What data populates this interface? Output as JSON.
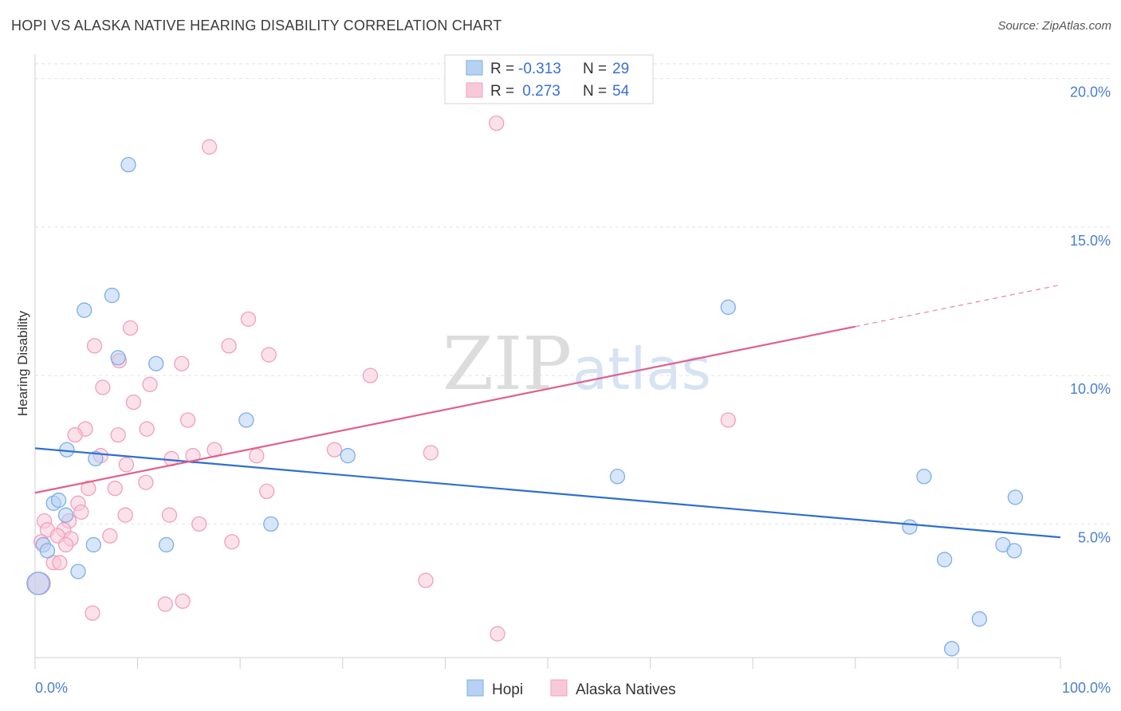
{
  "title": "HOPI VS ALASKA NATIVE HEARING DISABILITY CORRELATION CHART",
  "source": "Source: ZipAtlas.com",
  "watermark": {
    "zip": "ZIP",
    "atlas": "atlas"
  },
  "chart_data": {
    "type": "scatter",
    "ylabel": "Hearing Disability",
    "xlim": [
      0,
      100
    ],
    "ylim": [
      0.5,
      20.5
    ],
    "x_tick_labels": [
      {
        "value": 0,
        "label": "0.0%"
      },
      {
        "value": 100,
        "label": "100.0%"
      }
    ],
    "y_ticks": [
      {
        "value": 5,
        "label": "5.0%"
      },
      {
        "value": 10,
        "label": "10.0%"
      },
      {
        "value": 15,
        "label": "15.0%"
      },
      {
        "value": 20,
        "label": "20.0%"
      }
    ],
    "legend": {
      "placement": "top-center",
      "rows": [
        {
          "r_label": "R =",
          "r_value": "-0.313",
          "n_label": "N =",
          "n_value": "29"
        },
        {
          "r_label": "R =",
          "r_value": " 0.273",
          "n_label": "N =",
          "n_value": "54"
        }
      ]
    },
    "series": [
      {
        "name": "Hopi",
        "color": "#7eaee8",
        "fill": "#b6d2f3",
        "line_color": "#2f6fd0",
        "trend": {
          "x0": 0,
          "y0": 7.55,
          "x1": 100,
          "y1": 4.55
        },
        "points": [
          [
            9.1,
            17.1
          ],
          [
            7.5,
            12.7
          ],
          [
            4.8,
            12.2
          ],
          [
            8.1,
            10.6
          ],
          [
            11.8,
            10.4
          ],
          [
            20.6,
            8.5
          ],
          [
            5.9,
            7.2
          ],
          [
            3.1,
            7.5
          ],
          [
            30.5,
            7.3
          ],
          [
            1.8,
            5.7
          ],
          [
            2.3,
            5.8
          ],
          [
            3.0,
            5.3
          ],
          [
            23.0,
            5.0
          ],
          [
            0.8,
            4.3
          ],
          [
            1.2,
            4.1
          ],
          [
            5.7,
            4.3
          ],
          [
            12.8,
            4.3
          ],
          [
            4.2,
            3.4
          ],
          [
            0.3,
            3.0
          ],
          [
            67.6,
            12.3
          ],
          [
            56.8,
            6.6
          ],
          [
            86.7,
            6.6
          ],
          [
            95.6,
            5.9
          ],
          [
            85.3,
            4.9
          ],
          [
            88.7,
            3.8
          ],
          [
            94.4,
            4.3
          ],
          [
            95.5,
            4.1
          ],
          [
            92.1,
            1.8
          ],
          [
            89.4,
            0.8
          ]
        ]
      },
      {
        "name": "Alaska Natives",
        "color": "#f0a0bc",
        "fill": "#f8c8d8",
        "line_color": "#e0608e",
        "trend": {
          "x0": 0,
          "y0": 6.05,
          "x1": 80,
          "y1": 11.65
        },
        "trend_dashed": {
          "x0": 80,
          "y0": 11.65,
          "x1": 100,
          "y1": 13.05
        },
        "points": [
          [
            17.0,
            17.7
          ],
          [
            45.0,
            18.5
          ],
          [
            20.8,
            11.9
          ],
          [
            9.3,
            11.6
          ],
          [
            5.8,
            11.0
          ],
          [
            18.9,
            11.0
          ],
          [
            8.2,
            10.5
          ],
          [
            14.3,
            10.4
          ],
          [
            22.8,
            10.7
          ],
          [
            32.7,
            10.0
          ],
          [
            6.6,
            9.6
          ],
          [
            11.2,
            9.7
          ],
          [
            9.6,
            9.1
          ],
          [
            14.9,
            8.5
          ],
          [
            10.9,
            8.2
          ],
          [
            4.9,
            8.2
          ],
          [
            8.1,
            8.0
          ],
          [
            3.9,
            8.0
          ],
          [
            6.4,
            7.3
          ],
          [
            13.3,
            7.2
          ],
          [
            15.4,
            7.3
          ],
          [
            17.5,
            7.5
          ],
          [
            21.6,
            7.3
          ],
          [
            29.2,
            7.5
          ],
          [
            38.6,
            7.4
          ],
          [
            8.9,
            7.0
          ],
          [
            5.2,
            6.2
          ],
          [
            7.8,
            6.2
          ],
          [
            10.8,
            6.4
          ],
          [
            22.6,
            6.1
          ],
          [
            4.2,
            5.7
          ],
          [
            4.5,
            5.4
          ],
          [
            8.8,
            5.3
          ],
          [
            13.1,
            5.3
          ],
          [
            0.9,
            5.1
          ],
          [
            3.3,
            5.1
          ],
          [
            16.0,
            5.0
          ],
          [
            1.2,
            4.8
          ],
          [
            2.8,
            4.8
          ],
          [
            2.2,
            4.6
          ],
          [
            7.3,
            4.6
          ],
          [
            0.6,
            4.4
          ],
          [
            3.5,
            4.5
          ],
          [
            19.2,
            4.4
          ],
          [
            3.0,
            4.3
          ],
          [
            1.8,
            3.7
          ],
          [
            2.4,
            3.7
          ],
          [
            0.4,
            3.0
          ],
          [
            38.1,
            3.1
          ],
          [
            12.7,
            2.3
          ],
          [
            14.4,
            2.4
          ],
          [
            5.6,
            2.0
          ],
          [
            45.1,
            1.3
          ],
          [
            67.6,
            8.5
          ]
        ]
      }
    ]
  }
}
